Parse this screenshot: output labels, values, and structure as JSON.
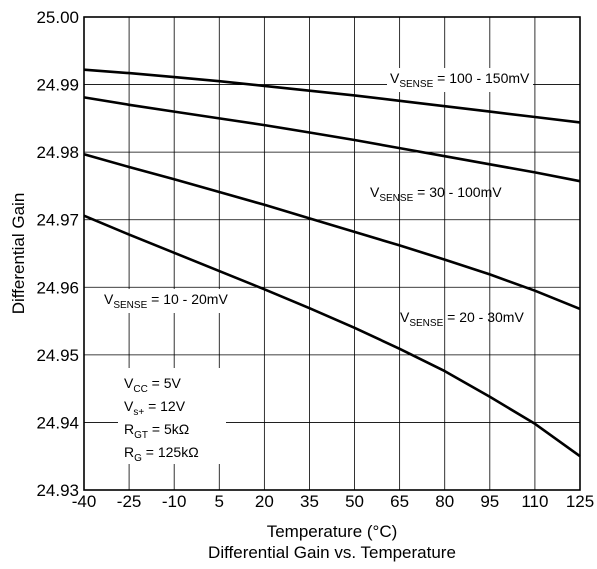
{
  "chart_data": {
    "type": "line",
    "title": "Differential Gain vs. Temperature",
    "xlabel": "Temperature (°C)",
    "ylabel": "Differential Gain",
    "xlim": [
      -40,
      125
    ],
    "ylim": [
      24.93,
      25.0
    ],
    "x_ticks": [
      "-40",
      "-25",
      "-10",
      "5",
      "20",
      "35",
      "50",
      "65",
      "80",
      "95",
      "110",
      "125"
    ],
    "y_ticks": [
      "25.00",
      "24.99",
      "24.98",
      "24.97",
      "24.96",
      "24.95",
      "24.94",
      "24.93"
    ],
    "grid": true,
    "series": [
      {
        "name_main": "V",
        "name_sub": "SENSE",
        "name_rest": " = 100 - 150mV",
        "x": [
          -40,
          -25,
          -10,
          5,
          20,
          35,
          50,
          65,
          80,
          95,
          110,
          125
        ],
        "values": [
          24.9922,
          24.9917,
          24.9911,
          24.9905,
          24.9898,
          24.9891,
          24.9884,
          24.9876,
          24.9868,
          24.986,
          24.9852,
          24.9844
        ]
      },
      {
        "name_main": "V",
        "name_sub": "SENSE",
        "name_rest": " = 30 - 100mV",
        "x": [
          -40,
          -25,
          -10,
          5,
          20,
          35,
          50,
          65,
          80,
          95,
          110,
          125
        ],
        "values": [
          24.9881,
          24.987,
          24.986,
          24.985,
          24.984,
          24.9829,
          24.9818,
          24.9806,
          24.9794,
          24.9782,
          24.977,
          24.9757
        ]
      },
      {
        "name_main": "V",
        "name_sub": "SENSE",
        "name_rest": " = 20 - 30mV",
        "x": [
          -40,
          -25,
          -10,
          5,
          20,
          35,
          50,
          65,
          80,
          95,
          110,
          125
        ],
        "values": [
          24.9797,
          24.9778,
          24.976,
          24.9741,
          24.9722,
          24.9702,
          24.9682,
          24.9662,
          24.9641,
          24.9619,
          24.9595,
          24.9568
        ]
      },
      {
        "name_main": "V",
        "name_sub": "SENSE",
        "name_rest": " = 10 - 20mV",
        "x": [
          -40,
          -25,
          -10,
          5,
          20,
          35,
          50,
          65,
          80,
          95,
          110,
          125
        ],
        "values": [
          24.9706,
          24.9678,
          24.9651,
          24.9624,
          24.9597,
          24.9569,
          24.954,
          24.9509,
          24.9476,
          24.9438,
          24.9398,
          24.935
        ]
      }
    ],
    "conditions": [
      {
        "main": "V",
        "sub": "CC",
        "rest": " = 5V"
      },
      {
        "main": "V",
        "sub": "s+",
        "rest": " = 12V"
      },
      {
        "main": "R",
        "sub": "GT",
        "rest": " = 5kΩ"
      },
      {
        "main": "R",
        "sub": "G",
        "rest": " = 125kΩ"
      }
    ]
  }
}
